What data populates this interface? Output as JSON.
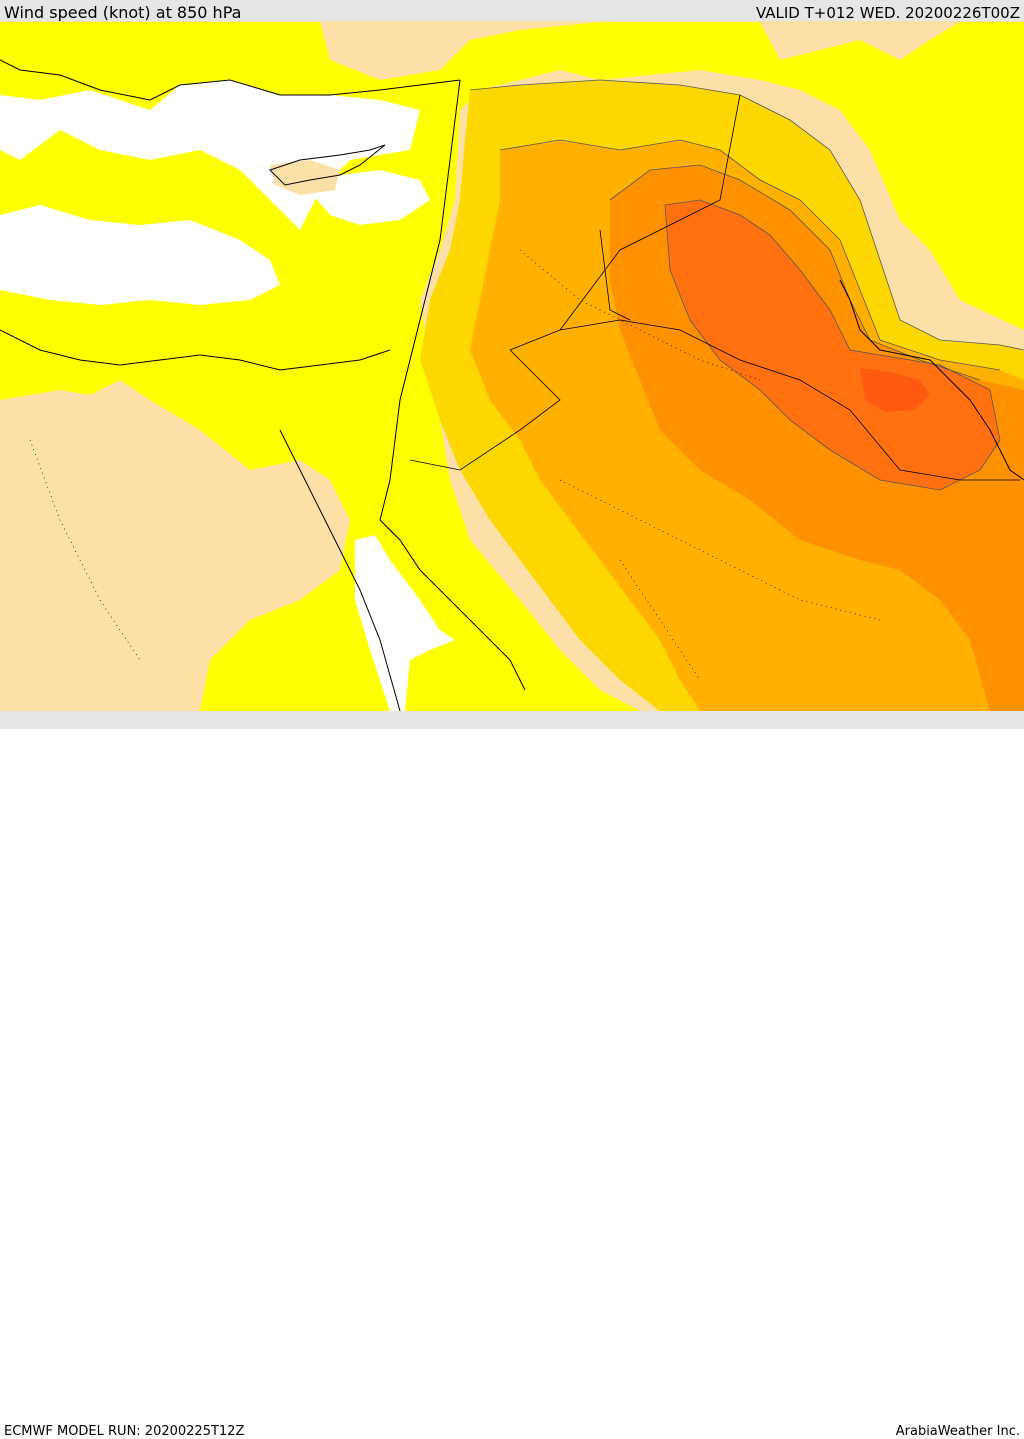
{
  "header": {
    "title": "Wind speed (knot) at 850 hPa",
    "valid_time": "VALID T+012 WED. 20200226T00Z"
  },
  "footer": {
    "model_run": "ECMWF MODEL RUN: 20200225T12Z",
    "credit": "ArabiaWeather Inc."
  },
  "map": {
    "variable": "wind speed",
    "units": "knot",
    "pressure_level_hPa": 850,
    "colors": {
      "band_0": "#ffffff",
      "band_1": "#fde0a8",
      "band_2": "#ffff00",
      "band_3": "#ffd700",
      "band_4": "#ffb000",
      "band_5": "#ff9000",
      "band_6": "#ff7010",
      "band_7": "#ff5a10",
      "coast_line": "#000000"
    }
  }
}
